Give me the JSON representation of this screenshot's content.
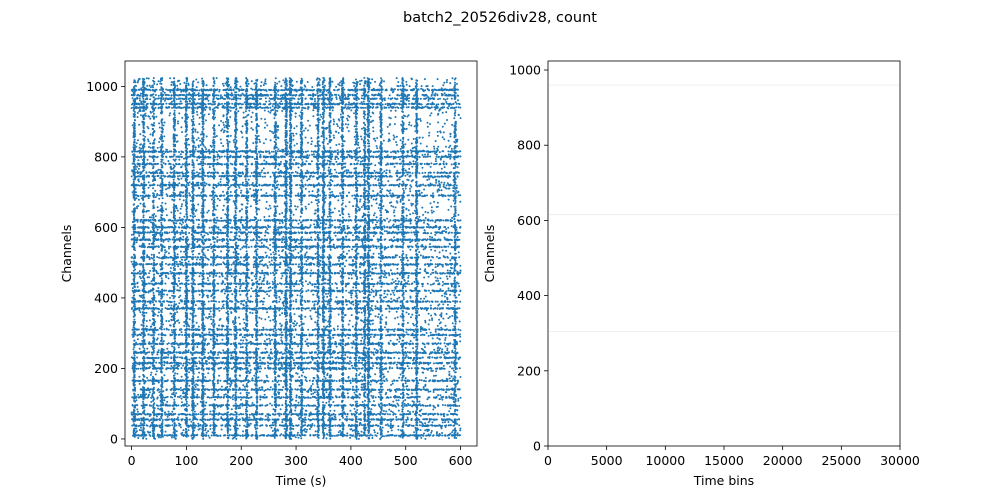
{
  "figure": {
    "suptitle": "batch2_20526div28, count"
  },
  "chart_data": [
    {
      "type": "scatter",
      "xlabel": "Time (s)",
      "ylabel": "Channels",
      "xlim": [
        -12,
        630
      ],
      "ylim": [
        -20,
        1072
      ],
      "xticks": [
        0,
        100,
        200,
        300,
        400,
        500,
        600
      ],
      "yticks": [
        0,
        200,
        400,
        600,
        800,
        1000
      ],
      "color": "#1f77b4",
      "marker_size": 1.5,
      "approx_time_range": [
        0,
        600
      ],
      "approx_channel_range": [
        0,
        1024
      ],
      "dense_channel_rows": [
        10,
        38,
        55,
        70,
        95,
        118,
        140,
        165,
        200,
        215,
        230,
        245,
        270,
        295,
        310,
        370,
        390,
        420,
        440,
        470,
        495,
        515,
        545,
        565,
        585,
        600,
        620,
        690,
        720,
        745,
        755,
        780,
        800,
        815,
        940,
        950,
        965,
        975,
        990
      ],
      "burst_times": [
        5,
        22,
        40,
        55,
        78,
        100,
        112,
        130,
        150,
        175,
        190,
        210,
        228,
        262,
        282,
        290,
        310,
        340,
        350,
        362,
        385,
        410,
        425,
        432,
        455,
        495,
        520,
        590
      ]
    },
    {
      "type": "heatmap",
      "xlabel": "Time bins",
      "ylabel": "Channels",
      "xlim": [
        0,
        30000
      ],
      "ylim": [
        0,
        1024
      ],
      "xticks": [
        0,
        5000,
        10000,
        15000,
        20000,
        25000,
        30000
      ],
      "yticks": [
        0,
        200,
        400,
        600,
        800,
        1000
      ],
      "faint_rows": [
        960,
        615,
        305
      ]
    }
  ]
}
